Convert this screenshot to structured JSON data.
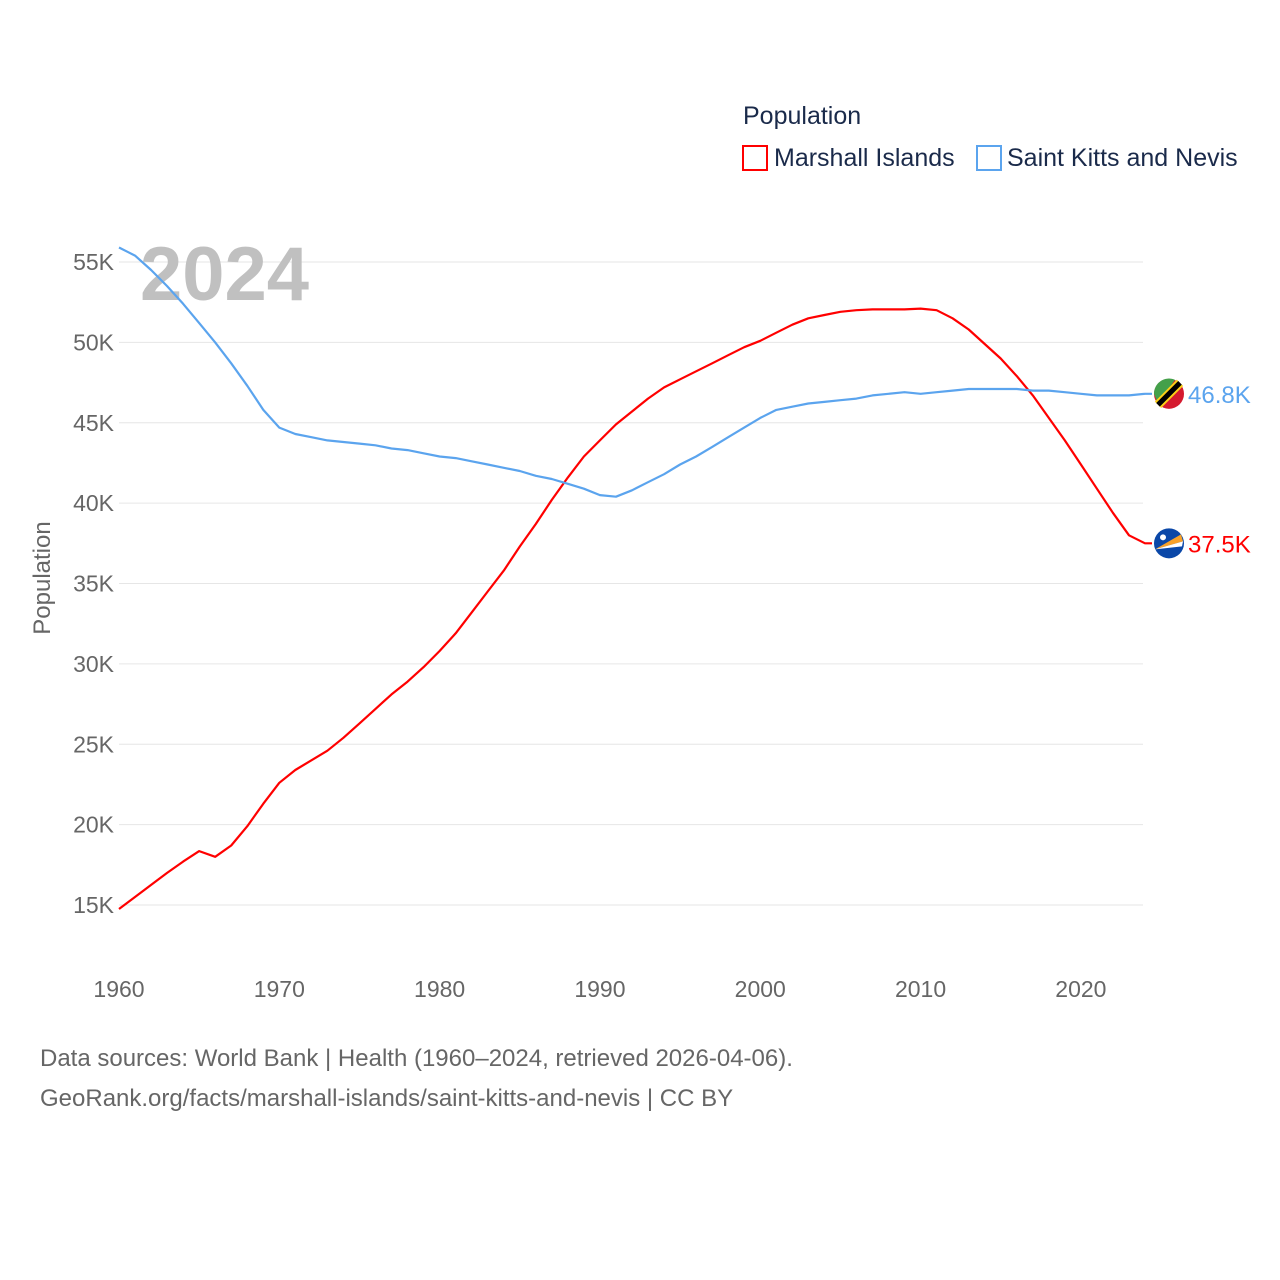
{
  "chart_data": {
    "type": "line",
    "title": "",
    "watermark_year": "2024",
    "ylabel": "Population",
    "xlabel": "",
    "xlim": [
      1960,
      2024
    ],
    "ylim": [
      15000,
      55000
    ],
    "grid": true,
    "legend_placement": "top-right",
    "legend_title": "Population",
    "x_ticks": [
      "1960",
      "1970",
      "1980",
      "1990",
      "2000",
      "2010",
      "2020"
    ],
    "y_ticks": [
      "15K",
      "20K",
      "25K",
      "30K",
      "35K",
      "40K",
      "45K",
      "50K",
      "55K"
    ],
    "y_tick_values": [
      15000,
      20000,
      25000,
      30000,
      35000,
      40000,
      45000,
      50000,
      55000
    ],
    "x": [
      1960,
      1961,
      1962,
      1963,
      1964,
      1965,
      1966,
      1967,
      1968,
      1969,
      1970,
      1971,
      1972,
      1973,
      1974,
      1975,
      1976,
      1977,
      1978,
      1979,
      1980,
      1981,
      1982,
      1983,
      1984,
      1985,
      1986,
      1987,
      1988,
      1989,
      1990,
      1991,
      1992,
      1993,
      1994,
      1995,
      1996,
      1997,
      1998,
      1999,
      2000,
      2001,
      2002,
      2003,
      2004,
      2005,
      2006,
      2007,
      2008,
      2009,
      2010,
      2011,
      2012,
      2013,
      2014,
      2015,
      2016,
      2017,
      2018,
      2019,
      2020,
      2021,
      2022,
      2023,
      2024
    ],
    "series": [
      {
        "name": "Marshall Islands",
        "color": "#ff0000",
        "end_label": "37.5K",
        "values": [
          14750,
          15500,
          16250,
          17000,
          17700,
          18350,
          18000,
          18700,
          19900,
          21300,
          22600,
          23400,
          24000,
          24600,
          25400,
          26300,
          27200,
          28100,
          28900,
          29800,
          30800,
          31900,
          33200,
          34500,
          35800,
          37300,
          38700,
          40200,
          41600,
          42900,
          43900,
          44900,
          45700,
          46500,
          47200,
          47700,
          48200,
          48700,
          49200,
          49700,
          50100,
          50600,
          51100,
          51500,
          51700,
          51900,
          52000,
          52050,
          52050,
          52050,
          52100,
          52000,
          51500,
          50800,
          49900,
          49000,
          47900,
          46700,
          45300,
          43900,
          42400,
          40900,
          39400,
          38000,
          37500
        ]
      },
      {
        "name": "Saint Kitts and Nevis",
        "color": "#5ba4ee",
        "end_label": "46.8K",
        "values": [
          55900,
          55400,
          54500,
          53500,
          52400,
          51200,
          50000,
          48700,
          47300,
          45800,
          44700,
          44300,
          44100,
          43900,
          43800,
          43700,
          43600,
          43400,
          43300,
          43100,
          42900,
          42800,
          42600,
          42400,
          42200,
          42000,
          41700,
          41500,
          41200,
          40900,
          40500,
          40400,
          40800,
          41300,
          41800,
          42400,
          42900,
          43500,
          44100,
          44700,
          45300,
          45800,
          46000,
          46200,
          46300,
          46400,
          46500,
          46700,
          46800,
          46900,
          46800,
          46900,
          47000,
          47100,
          47100,
          47100,
          47100,
          47000,
          47000,
          46900,
          46800,
          46700,
          46700,
          46700,
          46800
        ]
      }
    ]
  },
  "footer": {
    "line1": "Data sources: World Bank | Health (1960–2024, retrieved 2026-04-06).",
    "line2": "GeoRank.org/facts/marshall-islands/saint-kitts-and-nevis | CC BY"
  }
}
